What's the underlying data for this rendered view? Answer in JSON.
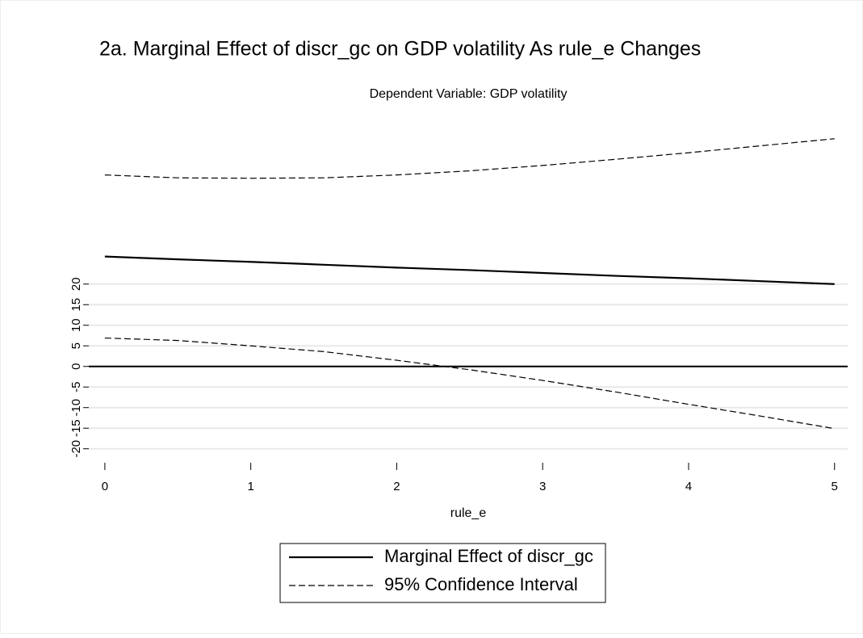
{
  "chart_data": {
    "type": "line",
    "title": "2a. Marginal Effect of discr_gc on GDP volatility As rule_e Changes",
    "subtitle": "Dependent Variable: GDP volatility",
    "x_label": "rule_e",
    "x": [
      0,
      0.5,
      1,
      1.5,
      2,
      2.5,
      3,
      3.5,
      4,
      4.5,
      5
    ],
    "series": [
      {
        "name": "Marginal Effect of discr_gc",
        "color": "#000000",
        "style": "solid",
        "values": [
          26.7,
          26.0,
          25.4,
          24.7,
          24.0,
          23.4,
          22.7,
          22.0,
          21.4,
          20.7,
          20.0
        ]
      },
      {
        "name": "95% Confidence Interval",
        "color": "#000000",
        "style": "dashed",
        "upper": [
          46.5,
          45.8,
          45.7,
          45.8,
          46.5,
          47.5,
          48.8,
          50.3,
          51.9,
          53.6,
          55.3
        ],
        "lower": [
          6.9,
          6.3,
          5.0,
          3.6,
          1.5,
          -0.8,
          -3.4,
          -6.2,
          -9.2,
          -12.1,
          -15.1
        ]
      }
    ],
    "xlim": [
      -0.11,
      5.09
    ],
    "xticks": [
      0,
      1,
      2,
      3,
      4,
      5
    ],
    "ylim": [
      -23,
      58
    ],
    "yticks": [
      -20,
      -15,
      -10,
      -5,
      0,
      5,
      10,
      15,
      20
    ],
    "yline": 0,
    "grid": true,
    "legend": "bottom"
  }
}
